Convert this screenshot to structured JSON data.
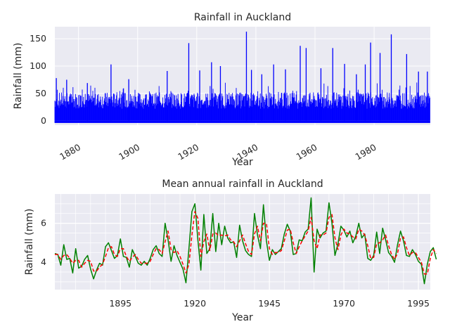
{
  "chart_data": [
    {
      "type": "bar",
      "title": "Rainfall in Auckland",
      "xlabel": "Year",
      "ylabel": "Rainfall (mm)",
      "xlim": [
        1872,
        1999
      ],
      "ylim": [
        -8,
        172
      ],
      "x_ticks": [
        1880,
        1900,
        1920,
        1940,
        1960,
        1980
      ],
      "y_ticks": [
        0,
        50,
        100,
        150
      ],
      "series_color": "#0000ff",
      "note_values": "daily rainfall bars; representative envelope of monthly maxima",
      "peaks": [
        {
          "year": 1872.5,
          "value": 78
        },
        {
          "year": 1876,
          "value": 75
        },
        {
          "year": 1883,
          "value": 69
        },
        {
          "year": 1891,
          "value": 103
        },
        {
          "year": 1897,
          "value": 76
        },
        {
          "year": 1910,
          "value": 91
        },
        {
          "year": 1917.3,
          "value": 142
        },
        {
          "year": 1921,
          "value": 92
        },
        {
          "year": 1925,
          "value": 107
        },
        {
          "year": 1928,
          "value": 100
        },
        {
          "year": 1936.8,
          "value": 163
        },
        {
          "year": 1938.5,
          "value": 93
        },
        {
          "year": 1942,
          "value": 85
        },
        {
          "year": 1946,
          "value": 103
        },
        {
          "year": 1950,
          "value": 94
        },
        {
          "year": 1955,
          "value": 137
        },
        {
          "year": 1957,
          "value": 133
        },
        {
          "year": 1962,
          "value": 96
        },
        {
          "year": 1966,
          "value": 133
        },
        {
          "year": 1970,
          "value": 104
        },
        {
          "year": 1974,
          "value": 85
        },
        {
          "year": 1977,
          "value": 103
        },
        {
          "year": 1978.8,
          "value": 143
        },
        {
          "year": 1982,
          "value": 124
        },
        {
          "year": 1985.8,
          "value": 158
        },
        {
          "year": 1991,
          "value": 122
        },
        {
          "year": 1995,
          "value": 90
        },
        {
          "year": 1998,
          "value": 90
        }
      ]
    },
    {
      "type": "line",
      "title": "Mean annual rainfall in Auckland",
      "xlabel": "Year",
      "ylabel": "Rainfall (mm)",
      "xlim": [
        1873,
        1999
      ],
      "ylim": [
        2.6,
        7.5
      ],
      "x_ticks": [
        1895,
        1920,
        1945,
        1970,
        1995
      ],
      "y_ticks": [
        4,
        6
      ],
      "x_start": 1873,
      "series": [
        {
          "color": "#008000",
          "style": "solid",
          "values": [
            4.45,
            4.4,
            3.85,
            4.9,
            4.15,
            4.2,
            3.45,
            4.7,
            3.7,
            3.8,
            4.15,
            4.35,
            3.65,
            3.15,
            3.6,
            3.95,
            3.85,
            4.8,
            5.0,
            4.6,
            4.2,
            4.35,
            5.2,
            4.3,
            4.25,
            3.75,
            4.65,
            4.3,
            3.95,
            3.85,
            4.05,
            3.85,
            4.2,
            4.65,
            4.85,
            4.45,
            4.3,
            6.0,
            5.15,
            4.05,
            4.85,
            4.35,
            4.0,
            3.65,
            2.95,
            4.7,
            6.6,
            7.0,
            5.15,
            3.6,
            6.45,
            4.45,
            4.7,
            6.5,
            4.55,
            6.0,
            4.9,
            5.85,
            5.25,
            5.0,
            5.05,
            4.25,
            5.9,
            5.1,
            4.6,
            4.4,
            4.3,
            6.5,
            5.4,
            4.7,
            6.95,
            5.1,
            4.1,
            4.65,
            4.4,
            4.55,
            4.7,
            5.45,
            5.95,
            5.6,
            4.4,
            4.45,
            5.15,
            5.1,
            5.55,
            5.7,
            7.3,
            3.5,
            5.7,
            5.25,
            5.5,
            5.6,
            7.05,
            6.0,
            4.35,
            4.95,
            5.85,
            5.65,
            5.3,
            5.6,
            5.0,
            5.35,
            6.0,
            5.25,
            5.45,
            4.2,
            4.1,
            4.35,
            5.55,
            4.45,
            5.75,
            5.15,
            4.5,
            4.3,
            4.0,
            4.9,
            5.6,
            5.1,
            4.35,
            4.3,
            4.65,
            4.4,
            4.05,
            3.9,
            2.9,
            3.9,
            4.55,
            4.75,
            4.15
          ]
        },
        {
          "color": "#ff0000",
          "style": "dashed",
          "values": [
            4.4,
            4.4,
            4.15,
            4.35,
            4.4,
            4.2,
            3.95,
            4.1,
            4.1,
            3.75,
            3.95,
            4.1,
            4.05,
            3.55,
            3.55,
            3.75,
            3.9,
            4.3,
            4.75,
            4.8,
            4.4,
            4.3,
            4.7,
            4.7,
            4.3,
            4.05,
            4.25,
            4.4,
            4.15,
            3.95,
            3.95,
            3.95,
            4.05,
            4.4,
            4.7,
            4.65,
            4.45,
            5.05,
            5.6,
            4.65,
            4.5,
            4.6,
            4.3,
            3.9,
            3.45,
            3.9,
            5.4,
            6.6,
            6.25,
            4.3,
            5.05,
            5.45,
            4.6,
            5.45,
            5.5,
            5.35,
            5.4,
            5.35,
            5.4,
            5.15,
            5.05,
            4.8,
            5.1,
            5.4,
            4.95,
            4.55,
            4.4,
            5.45,
            5.85,
            5.1,
            6.0,
            6.0,
            4.7,
            4.4,
            4.5,
            4.5,
            4.6,
            5.1,
            5.65,
            5.7,
            5.0,
            4.45,
            4.8,
            5.1,
            5.35,
            5.6,
            6.3,
            5.1,
            4.7,
            5.4,
            5.4,
            5.5,
            6.3,
            6.45,
            5.25,
            4.65,
            5.4,
            5.7,
            5.5,
            5.45,
            5.3,
            5.2,
            5.7,
            5.6,
            5.4,
            4.85,
            4.2,
            4.25,
            4.95,
            5.0,
            5.15,
            5.4,
            4.85,
            4.4,
            4.15,
            4.45,
            5.25,
            5.3,
            4.75,
            4.35,
            4.5,
            4.5,
            4.25,
            4.0,
            3.4,
            3.4,
            4.2,
            4.65,
            4.45
          ]
        }
      ]
    }
  ]
}
